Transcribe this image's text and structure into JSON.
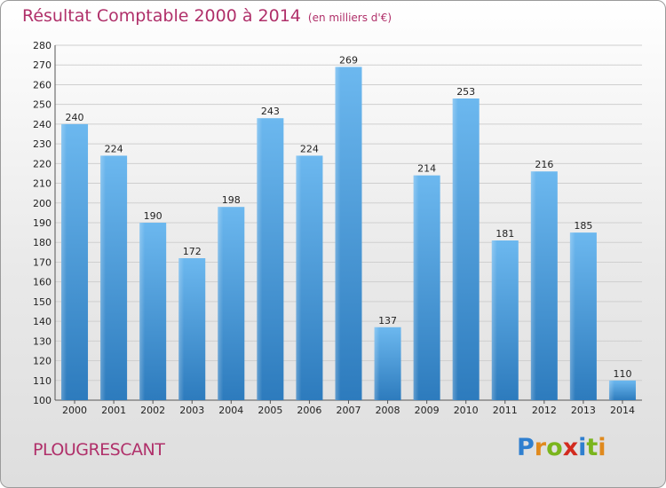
{
  "header": {
    "title": "Résultat Comptable 2000 à 2014",
    "unit": "(en milliers d'€)"
  },
  "footer": {
    "commune": "PLOUGRESCANT",
    "logo_text": "Proxiti",
    "logo_colors": [
      "#2f7fcf",
      "#e08a1e",
      "#7ab51d",
      "#d22b1f",
      "#2f7fcf",
      "#7ab51d",
      "#e08a1e"
    ]
  },
  "colors": {
    "accent": "#b0306a",
    "bar_light": "#66b3ec",
    "bar_dark": "#2f7fc0"
  },
  "chart_data": {
    "type": "bar",
    "title": "Résultat Comptable 2000 à 2014",
    "subtitle": "(en milliers d'€)",
    "categories": [
      "2000",
      "2001",
      "2002",
      "2003",
      "2004",
      "2005",
      "2006",
      "2007",
      "2008",
      "2009",
      "2010",
      "2011",
      "2012",
      "2013",
      "2014"
    ],
    "values": [
      240,
      224,
      190,
      172,
      198,
      243,
      224,
      269,
      137,
      214,
      253,
      181,
      216,
      185,
      110
    ],
    "ylim": [
      100,
      280
    ],
    "yticks": [
      100,
      110,
      120,
      130,
      140,
      150,
      160,
      170,
      180,
      190,
      200,
      210,
      220,
      230,
      240,
      250,
      260,
      270,
      280
    ],
    "grid": "horizontal",
    "xlabel": "",
    "ylabel": ""
  }
}
